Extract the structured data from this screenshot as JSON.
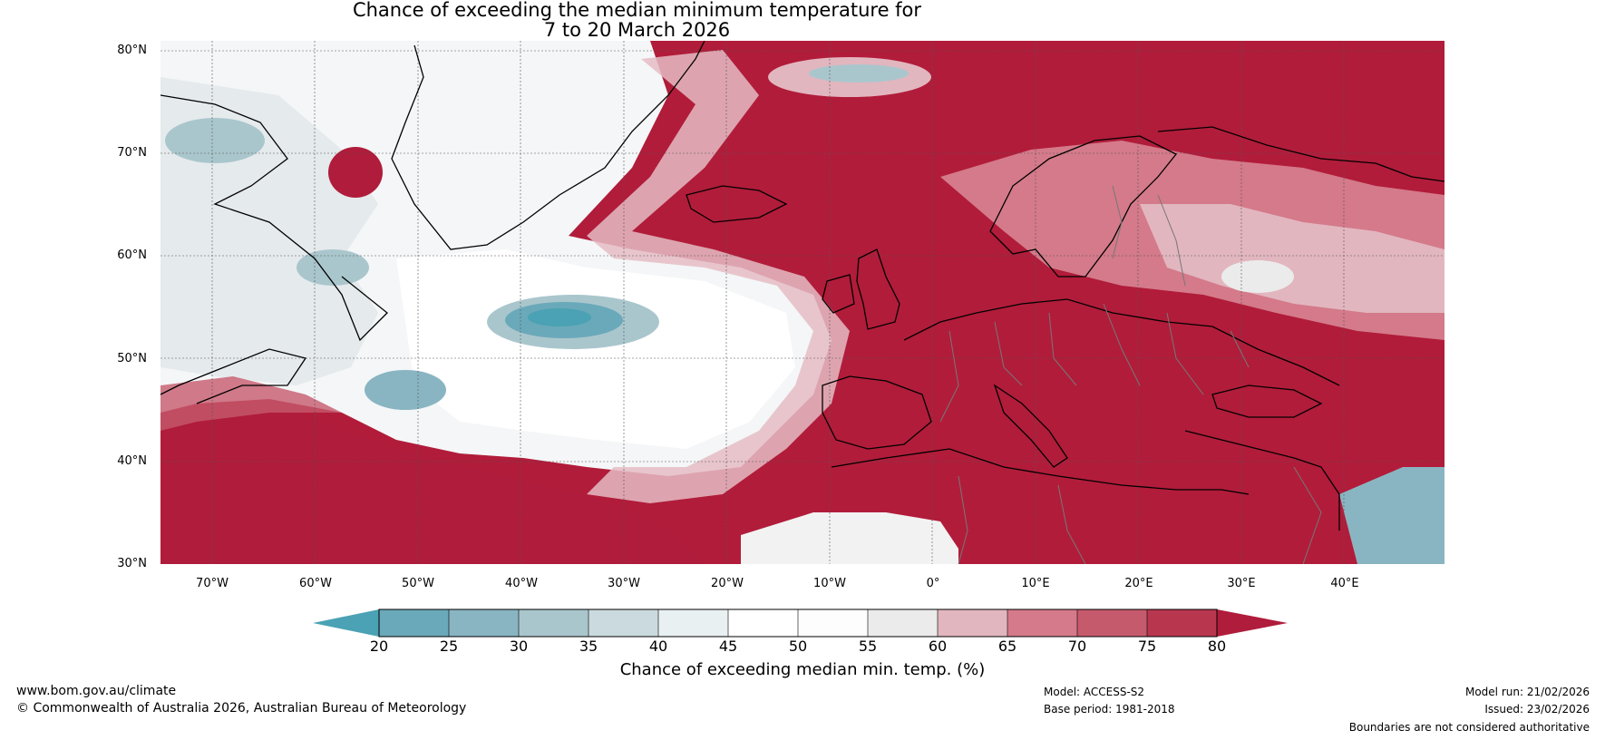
{
  "title": {
    "line1": "Chance of exceeding the median minimum temperature for",
    "line2": "7 to 20 March 2026"
  },
  "map": {
    "lat_labels": [
      "80°N",
      "70°N",
      "60°N",
      "50°N",
      "40°N",
      "30°N"
    ],
    "lon_labels": [
      "70°W",
      "60°W",
      "50°W",
      "40°W",
      "30°W",
      "20°W",
      "10°W",
      "0°",
      "10°E",
      "20°E",
      "30°E",
      "40°E"
    ],
    "lat_range": [
      30,
      81
    ],
    "lon_range": [
      -75,
      50
    ]
  },
  "colorbar": {
    "ticks": [
      "20",
      "25",
      "30",
      "35",
      "40",
      "45",
      "50",
      "55",
      "60",
      "65",
      "70",
      "75",
      "80"
    ],
    "colors": [
      "#4aa2b4",
      "#6aa9b9",
      "#89b5c2",
      "#aac6cd",
      "#cbdade",
      "#e8f0f2",
      "#ffffff",
      "#fdfdfd",
      "#ebebeb",
      "#e2b6bf",
      "#d47a8a",
      "#c65a6d",
      "#b8374f",
      "#b01c3b"
    ],
    "label": "Chance of exceeding median min. temp. (%)"
  },
  "footer": {
    "url": "www.bom.gov.au/climate",
    "copyright": "© Commonwealth of Australia 2026, Australian Bureau of Meteorology",
    "model": "Model: ACCESS-S2",
    "base_period": "Base period: 1981-2018",
    "model_run": "Model run: 21/02/2026",
    "issued": "Issued: 23/02/2026",
    "disclaimer": "Boundaries are not considered authoritative"
  }
}
